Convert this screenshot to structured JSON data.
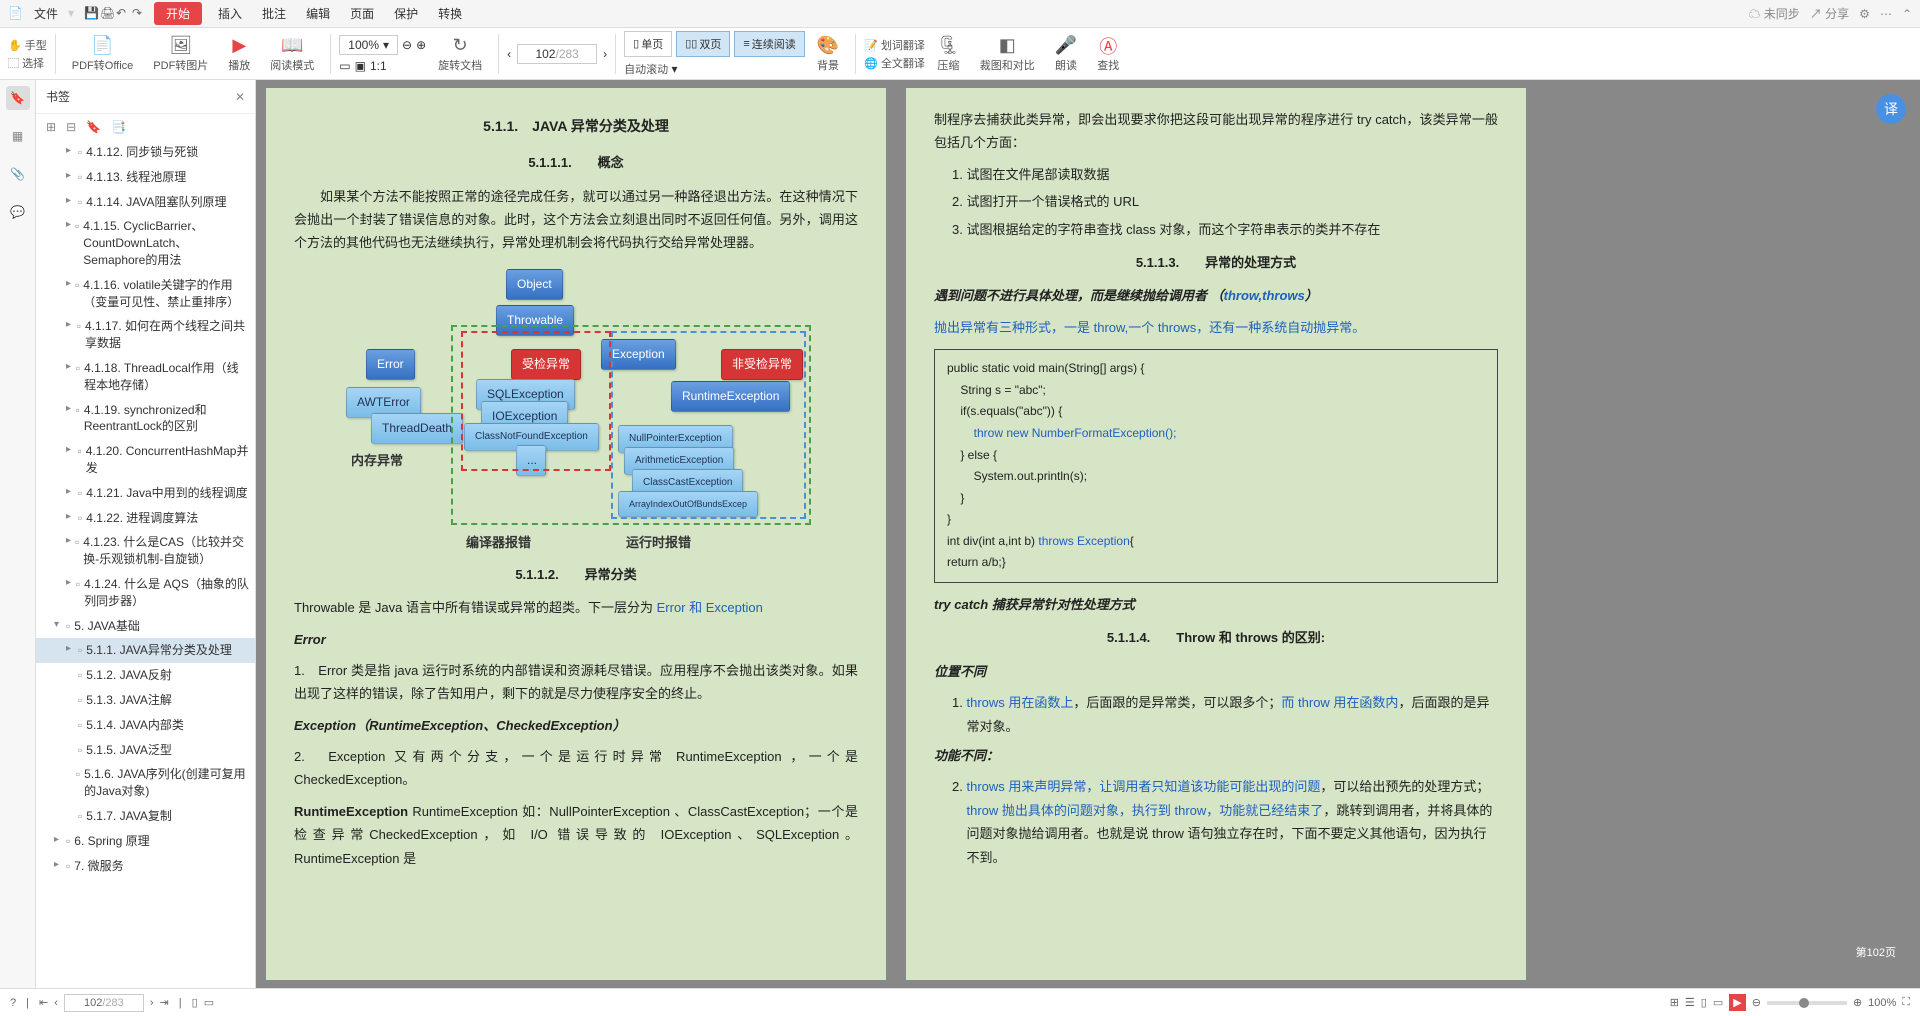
{
  "titlebar": {
    "file": "文件",
    "start": "开始",
    "insert": "插入",
    "review": "批注",
    "edit": "编辑",
    "page": "页面",
    "protect": "保护",
    "convert": "转换",
    "sync": "未同步",
    "share": "分享"
  },
  "toolbar": {
    "hand": "手型",
    "select": "选择",
    "pdf2office": "PDF转Office",
    "pdf2img": "PDF转图片",
    "play": "播放",
    "readmode": "阅读模式",
    "zoom": "100%",
    "rotate": "旋转文档",
    "single": "单页",
    "double": "双页",
    "continuous": "连续阅读",
    "autoscroll": "自动滚动",
    "background": "背景",
    "wordtrans": "划词翻译",
    "fulltrans": "全文翻译",
    "compress": "压缩",
    "compare": "裁图和对比",
    "read": "朗读",
    "find": "查找",
    "page_current": "102",
    "page_total": "/283"
  },
  "bookmarks": {
    "title": "书签",
    "items": [
      {
        "level": 1,
        "arrow": "▸",
        "label": "4.1.12. 同步锁与死锁"
      },
      {
        "level": 1,
        "arrow": "▸",
        "label": "4.1.13. 线程池原理"
      },
      {
        "level": 1,
        "arrow": "▸",
        "label": "4.1.14. JAVA阻塞队列原理"
      },
      {
        "level": 1,
        "arrow": "▸",
        "label": "4.1.15. CyclicBarrier、CountDownLatch、Semaphore的用法"
      },
      {
        "level": 1,
        "arrow": "▸",
        "label": "4.1.16. volatile关键字的作用（变量可见性、禁止重排序）"
      },
      {
        "level": 1,
        "arrow": "▸",
        "label": "4.1.17. 如何在两个线程之间共享数据"
      },
      {
        "level": 1,
        "arrow": "▸",
        "label": "4.1.18. ThreadLocal作用（线程本地存储）"
      },
      {
        "level": 1,
        "arrow": "▸",
        "label": "4.1.19. synchronized和ReentrantLock的区别"
      },
      {
        "level": 1,
        "arrow": "▸",
        "label": "4.1.20. ConcurrentHashMap并发"
      },
      {
        "level": 1,
        "arrow": "▸",
        "label": "4.1.21. Java中用到的线程调度"
      },
      {
        "level": 1,
        "arrow": "▸",
        "label": "4.1.22. 进程调度算法"
      },
      {
        "level": 1,
        "arrow": "▸",
        "label": "4.1.23. 什么是CAS（比较并交换-乐观锁机制-自旋锁）"
      },
      {
        "level": 1,
        "arrow": "▸",
        "label": "4.1.24. 什么是 AQS（抽象的队列同步器）"
      },
      {
        "level": 0,
        "arrow": "▾",
        "label": "5. JAVA基础"
      },
      {
        "level": 1,
        "arrow": "▸",
        "label": "5.1.1. JAVA异常分类及处理",
        "active": true
      },
      {
        "level": 1,
        "arrow": "",
        "label": "5.1.2. JAVA反射"
      },
      {
        "level": 1,
        "arrow": "",
        "label": "5.1.3. JAVA注解"
      },
      {
        "level": 1,
        "arrow": "",
        "label": "5.1.4. JAVA内部类"
      },
      {
        "level": 1,
        "arrow": "",
        "label": "5.1.5. JAVA泛型"
      },
      {
        "level": 1,
        "arrow": "",
        "label": "5.1.6. JAVA序列化(创建可复用的Java对象)"
      },
      {
        "level": 1,
        "arrow": "",
        "label": "5.1.7. JAVA复制"
      },
      {
        "level": 0,
        "arrow": "▸",
        "label": "6. Spring 原理"
      },
      {
        "level": 0,
        "arrow": "▸",
        "label": "7. 微服务"
      }
    ]
  },
  "page_left": {
    "h1": "5.1.1.　JAVA 异常分类及处理",
    "h2": "5.1.1.1.　　概念",
    "p1": "如果某个方法不能按照正常的途径完成任务，就可以通过另一种路径退出方法。在这种情况下会抛出一个封装了错误信息的对象。此时，这个方法会立刻退出同时不返回任何值。另外，调用这个方法的其他代码也无法继续执行，异常处理机制会将代码执行交给异常处理器。",
    "h3": "5.1.1.2.　　异常分类",
    "p2_a": "Throwable 是 Java 语言中所有错误或异常的超类。下一层分为 ",
    "p2_link": "Error 和 Exception",
    "err_h": "Error",
    "err_p": "1.　Error 类是指 java 运行时系统的内部错误和资源耗尽错误。应用程序不会抛出该类对象。如果出现了这样的错误，除了告知用户，剩下的就是尽力使程序安全的终止。",
    "exc_h": "Exception（RuntimeException、CheckedException）",
    "exc_p": "2.　Exception 又有两个分支，一个是运行时异常 RuntimeException ，一个是CheckedException。",
    "rt_p": "RuntimeException 如：NullPointerException 、ClassCastException；一个是检查异常CheckedException，如 I/O 错误导致的 IOException、SQLException。 RuntimeException 是",
    "diagram": {
      "object": "Object",
      "throwable": "Throwable",
      "error": "Error",
      "exception": "Exception",
      "checked": "受检异常",
      "unchecked": "非受检异常",
      "awt": "AWTError",
      "threaddeath": "ThreadDeath",
      "sql": "SQLException",
      "io": "IOException",
      "cnf": "ClassNotFoundException",
      "ellipsis": "...",
      "runtime": "RuntimeException",
      "npe": "NullPointerException",
      "ae": "ArithmeticException",
      "cce": "ClassCastException",
      "aioobe": "ArrayIndexOutOfBundsExcep",
      "mem_label": "内存异常",
      "compile_label": "编译器报错",
      "runtime_label": "运行时报错"
    }
  },
  "page_right": {
    "intro": "制程序去捕获此类异常，即会出现要求你把这段可能出现异常的程序进行 try catch，该类异常一般包括几个方面：",
    "li1": "试图在文件尾部读取数据",
    "li2": "试图打开一个错误格式的 URL",
    "li3": "试图根据给定的字符串查找 class 对象，而这个字符串表示的类并不存在",
    "h1": "5.1.1.3.　　异常的处理方式",
    "sub1_a": "遇到问题不进行具体处理，而是继续抛给调用者 （",
    "sub1_link": "throw,throws",
    "sub1_b": "）",
    "p1": "抛出异常有三种形式，一是 throw,一个 throws，还有一种系统自动抛异常。",
    "code": {
      "l1": "public static void main(String[] args) {",
      "l2": "    String s = \"abc\";",
      "l3": "    if(s.equals(\"abc\")) {",
      "l4a": "        ",
      "l4b": "throw new NumberFormatException();",
      "l5": "    } else {",
      "l6": "        System.out.println(s);",
      "l7": "    }",
      "l8": "}",
      "l9a": "int div(int a,int b) ",
      "l9b": "throws Exception",
      "l9c": "{",
      "l10": "return a/b;}"
    },
    "sub2": "try catch 捕获异常针对性处理方式",
    "h2": "5.1.1.4.　　Throw 和 throws 的区别:",
    "pos_h": "位置不同",
    "pos_li_a": "throws 用在函数上",
    "pos_li_b": "，后面跟的是异常类，可以跟多个；",
    "pos_li_c": "而 throw 用在函数内",
    "pos_li_d": "，后面跟的是异常对象。",
    "fn_h": "功能不同：",
    "fn_li_a": "throws 用来声明异常，让调用者只知道该功能可能出现的问题",
    "fn_li_b": "，可以给出预先的处理方式；",
    "fn_li_c": "throw 抛出具体的问题对象，执行到 throw，功能就已经结束了",
    "fn_li_d": "，跳转到调用者，并将具体的问题对象抛给调用者。也就是说 throw 语句独立存在时，下面不要定义其他语句，因为执行不到。"
  },
  "status": {
    "page": "102",
    "total": "/283",
    "float_btn": "第102页"
  }
}
